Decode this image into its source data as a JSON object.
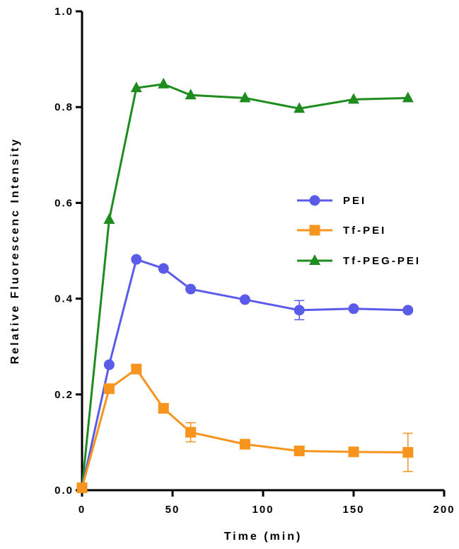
{
  "chart_data": {
    "type": "line",
    "title": "",
    "xlabel": "Time (min)",
    "ylabel": "Relative Fluorescenc Intensity",
    "xlim": [
      0,
      200
    ],
    "ylim": [
      0,
      1.0
    ],
    "x_ticks": [
      0,
      50,
      100,
      150,
      200
    ],
    "y_ticks": [
      0.0,
      0.2,
      0.4,
      0.6,
      0.8,
      1.0
    ],
    "x_tick_labels": [
      "0",
      "50",
      "100",
      "150",
      "200"
    ],
    "y_tick_labels": [
      "0.0",
      "0.2",
      "0.4",
      "0.6",
      "0.8",
      "1.0"
    ],
    "grid": false,
    "legend_position": "right",
    "x": [
      0,
      15,
      30,
      45,
      60,
      90,
      120,
      150,
      180
    ],
    "series": [
      {
        "name": "PEI",
        "marker": "circle",
        "color": "#5b5bea",
        "values": [
          0.005,
          0.262,
          0.482,
          0.463,
          0.42,
          0.398,
          0.376,
          0.379,
          0.376
        ],
        "errors": [
          0,
          0,
          0,
          0,
          0,
          0,
          0.02,
          0,
          0
        ]
      },
      {
        "name": "Tf-PEI",
        "marker": "square",
        "color": "#f7941d",
        "values": [
          0.005,
          0.212,
          0.253,
          0.171,
          0.121,
          0.096,
          0.082,
          0.08,
          0.079
        ],
        "errors": [
          0,
          0,
          0,
          0,
          0.02,
          0,
          0,
          0,
          0.04
        ]
      },
      {
        "name": "Tf-PEG-PEI",
        "marker": "triangle",
        "color": "#1f8c1f",
        "values": [
          0.005,
          0.565,
          0.84,
          0.848,
          0.825,
          0.819,
          0.797,
          0.816,
          0.819
        ],
        "errors": [
          0,
          0,
          0,
          0,
          0,
          0,
          0,
          0,
          0
        ]
      }
    ]
  }
}
